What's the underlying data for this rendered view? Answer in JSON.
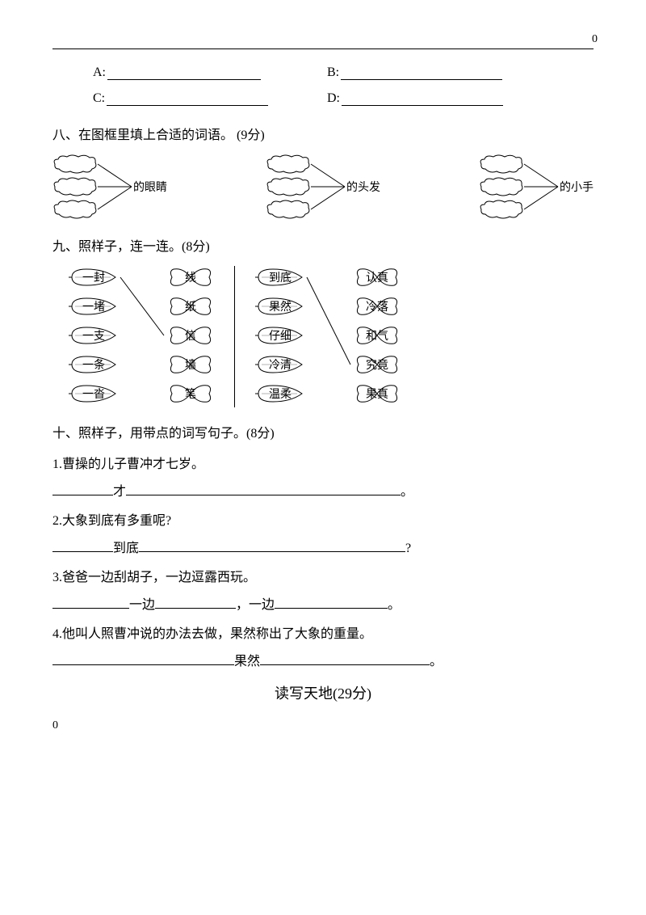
{
  "pageTopNum": "0",
  "abcd": {
    "A": "A:",
    "B": "B:",
    "C": "C:",
    "D": "D:"
  },
  "section8": {
    "title": "八、在图框里填上合适的词语。 (9分)",
    "groups": [
      "的眼睛",
      "的头发",
      "的小手"
    ]
  },
  "section9": {
    "title": "九、照样子，连一连。(8分)",
    "left": {
      "leaves": [
        "一封",
        "一堵",
        "一支",
        "一条",
        "一沓"
      ],
      "butterflies": [
        "线",
        "纸",
        "信",
        "墙",
        "笔"
      ]
    },
    "right": {
      "leaves": [
        "到底",
        "果然",
        "仔细",
        "冷清",
        "温柔"
      ],
      "butterflies": [
        "认真",
        "冷落",
        "和气",
        "究竟",
        "果真"
      ]
    }
  },
  "section10": {
    "title": "十、照样子，用带点的词写句子。(8分)",
    "items": [
      {
        "num": "1.",
        "prompt": "曹操的儿子曹冲才七岁。",
        "parts": [
          "才"
        ],
        "tail": "。"
      },
      {
        "num": "2.",
        "prompt": "大象到底有多重呢?",
        "parts": [
          "到底"
        ],
        "tail": "?"
      },
      {
        "num": "3.",
        "prompt": "爸爸一边刮胡子，一边逗露西玩。",
        "parts": [
          "一边",
          "，一边"
        ],
        "tail": "。"
      },
      {
        "num": "4.",
        "prompt": "他叫人照曹冲说的办法去做，果然称出了大象的重量。",
        "parts": [
          "果然"
        ],
        "tail": "。"
      }
    ]
  },
  "readingTitle": "读写天地(29分)",
  "bottomNum": "0"
}
